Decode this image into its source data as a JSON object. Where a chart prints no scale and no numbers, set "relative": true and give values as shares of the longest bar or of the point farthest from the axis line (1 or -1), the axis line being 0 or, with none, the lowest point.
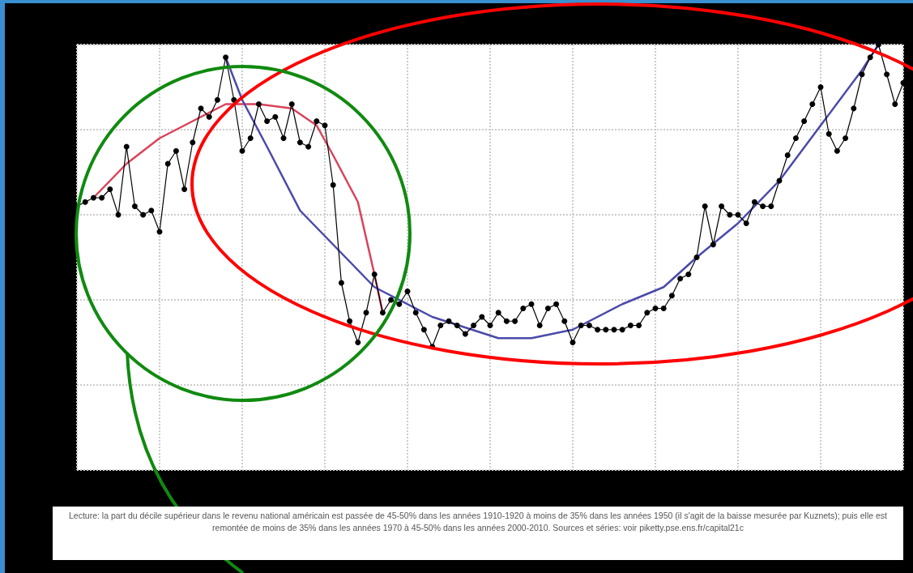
{
  "chart_data": {
    "type": "line",
    "relative": true,
    "grid": true,
    "marker": "circle",
    "categories": [
      null,
      null,
      null,
      null,
      null,
      null,
      null,
      null,
      null,
      null,
      null,
      null,
      null,
      null,
      null,
      null,
      null,
      null,
      null,
      null,
      null,
      null,
      null,
      null,
      null,
      null,
      null,
      null,
      null,
      null,
      null,
      null,
      null,
      null,
      null,
      null,
      null,
      null,
      null,
      null,
      null,
      null,
      null,
      null,
      null,
      null,
      null,
      null,
      null,
      null,
      null,
      null,
      null,
      null,
      null,
      null,
      null,
      null,
      null,
      null,
      null,
      null,
      null,
      null,
      null,
      null,
      null,
      null,
      null,
      null,
      null,
      null,
      null,
      null,
      null,
      null,
      null,
      null,
      null,
      null,
      null,
      null,
      null,
      null,
      null,
      null,
      null,
      null,
      null,
      null,
      null,
      null,
      null,
      null,
      null,
      null,
      null,
      null,
      null,
      null,
      null
    ],
    "series": [
      {
        "color": "#000000",
        "values": [
          0.62,
          0.63,
          0.64,
          0.64,
          0.66,
          0.6,
          0.76,
          0.62,
          0.6,
          0.61,
          0.56,
          0.72,
          0.75,
          0.66,
          0.77,
          0.85,
          0.83,
          0.87,
          0.97,
          0.87,
          0.75,
          0.78,
          0.86,
          0.82,
          0.83,
          0.78,
          0.86,
          0.77,
          0.76,
          0.82,
          0.81,
          0.67,
          0.44,
          0.35,
          0.3,
          0.37,
          0.46,
          0.37,
          0.4,
          0.39,
          0.42,
          0.37,
          0.33,
          0.29,
          0.34,
          0.35,
          0.34,
          0.32,
          0.34,
          0.36,
          0.34,
          0.37,
          0.35,
          0.35,
          0.38,
          0.39,
          0.34,
          0.38,
          0.39,
          0.35,
          0.3,
          0.34,
          0.34,
          0.33,
          0.33,
          0.33,
          0.33,
          0.34,
          0.34,
          0.37,
          0.38,
          0.38,
          0.41,
          0.45,
          0.46,
          0.5,
          0.62,
          0.53,
          0.62,
          0.6,
          0.6,
          0.58,
          0.63,
          0.62,
          0.62,
          0.68,
          0.74,
          0.78,
          0.82,
          0.86,
          0.9,
          0.79,
          0.75,
          0.78,
          0.85,
          0.93,
          0.97,
          1,
          0.93,
          0.86,
          0.91
        ]
      },
      {
        "color": "#d9435a",
        "marker": "none",
        "values": [
          null,
          null,
          0.64,
          null,
          null,
          null,
          0.72,
          null,
          null,
          null,
          0.78,
          null,
          null,
          null,
          0.82,
          null,
          null,
          null,
          0.86,
          null,
          null,
          null,
          0.86,
          null,
          null,
          null,
          0.85,
          null,
          null,
          0.81,
          null,
          0.74,
          null,
          null,
          0.63,
          null,
          0.46,
          0.37,
          null,
          null,
          null,
          null,
          null,
          null,
          null,
          null,
          null,
          null,
          null,
          null,
          null,
          null,
          null,
          null,
          null,
          null,
          null,
          null,
          null,
          null,
          null,
          null,
          null,
          null,
          null,
          null,
          null,
          null,
          null,
          null,
          null,
          null,
          null,
          null,
          null,
          null,
          null,
          null,
          null,
          null,
          null,
          null,
          null,
          null,
          null,
          null,
          null,
          null,
          null,
          null,
          null,
          null,
          null,
          null,
          null,
          null,
          null,
          null,
          null,
          null,
          null
        ]
      },
      {
        "color": "#4a4aaa",
        "marker": "none",
        "values": [
          null,
          null,
          null,
          null,
          null,
          null,
          null,
          null,
          null,
          null,
          null,
          null,
          null,
          null,
          null,
          null,
          null,
          null,
          0.97,
          null,
          0.87,
          null,
          null,
          0.76,
          null,
          null,
          null,
          0.61,
          null,
          null,
          null,
          null,
          0.51,
          null,
          null,
          null,
          0.43,
          null,
          null,
          null,
          null,
          null,
          null,
          0.36,
          null,
          null,
          null,
          null,
          null,
          null,
          null,
          0.31,
          null,
          null,
          null,
          0.31,
          null,
          null,
          null,
          null,
          0.33,
          null,
          null,
          null,
          null,
          null,
          0.39,
          null,
          null,
          null,
          null,
          0.43,
          null,
          null,
          null,
          0.5,
          null,
          null,
          null,
          null,
          0.58,
          null,
          null,
          null,
          null,
          0.68,
          null,
          null,
          null,
          null,
          0.81,
          null,
          null,
          null,
          null,
          0.94,
          null,
          1,
          null,
          null,
          null
        ]
      }
    ],
    "annotations": [
      "Lecture: la part du décile supérieur dans le revenu national américain est passée de 45-50% dans les années 1910-1920 à moins de 35% dans les années 1950 (il s'agit de la baisse mesurée par Kuznets); puis elle est remontée de moins de 35% dans les années 1970 à 45-50% dans les années 2000-2010. Sources et séries: voir piketty.pse.ens.fr/capital21c"
    ]
  }
}
